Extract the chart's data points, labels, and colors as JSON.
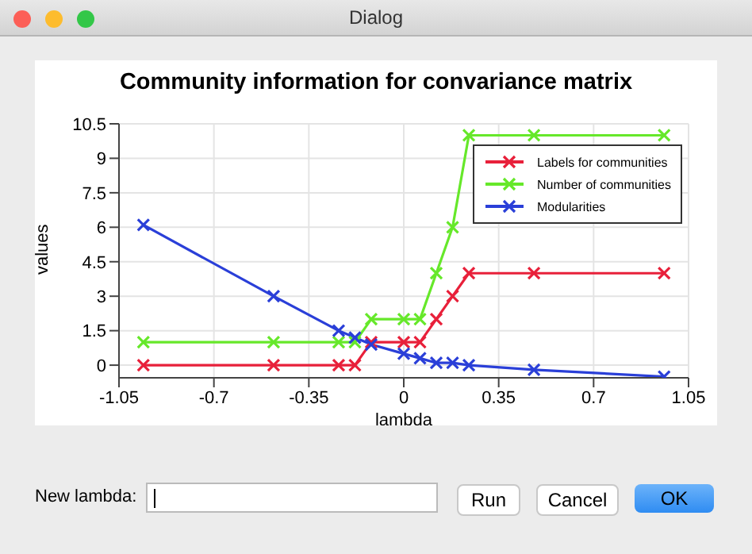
{
  "chart_data": {
    "type": "line",
    "title": "Community information for convariance matrix",
    "xlabel": "lambda",
    "ylabel": "values",
    "annotations": [
      "Dialog",
      "New lambda:",
      "Run",
      "Cancel",
      "OK"
    ],
    "xlim": [
      -1.05,
      1.05
    ],
    "xticks": [
      -1.05,
      -0.7,
      -0.35,
      0,
      0.35,
      0.7,
      1.05
    ],
    "ylim": [
      -0.55,
      10.5
    ],
    "yticks": [
      0,
      1.5,
      3,
      4.5,
      6,
      7.5,
      9,
      10.5
    ],
    "grid": true,
    "legend": "top right",
    "marker": "cross",
    "line_style": "solid",
    "series": [
      {
        "name": "Labels for communities",
        "color": "#e8203a",
        "x": [
          -0.96,
          -0.48,
          -0.24,
          -0.18,
          -0.12,
          0,
          0.06,
          0.12,
          0.18,
          0.24,
          0.48,
          0.96
        ],
        "values": [
          0,
          0,
          0,
          0,
          1,
          1,
          1,
          2,
          3,
          4,
          4,
          4
        ]
      },
      {
        "name": "Number of communities",
        "color": "#66e82a",
        "x": [
          -0.96,
          -0.48,
          -0.24,
          -0.18,
          -0.12,
          0,
          0.06,
          0.12,
          0.18,
          0.24,
          0.48,
          0.96
        ],
        "values": [
          1,
          1,
          1,
          1,
          2,
          2,
          2,
          4,
          6,
          10,
          10,
          10
        ]
      },
      {
        "name": "Modularities",
        "color": "#2a3fd8",
        "x": [
          -0.96,
          -0.48,
          -0.24,
          -0.18,
          -0.12,
          0,
          0.06,
          0.12,
          0.18,
          0.24,
          0.48,
          0.96
        ],
        "values": [
          6.1,
          3.0,
          1.5,
          1.2,
          0.9,
          0.5,
          0.3,
          0.1,
          0.1,
          0,
          -0.2,
          -0.5
        ]
      }
    ]
  }
}
